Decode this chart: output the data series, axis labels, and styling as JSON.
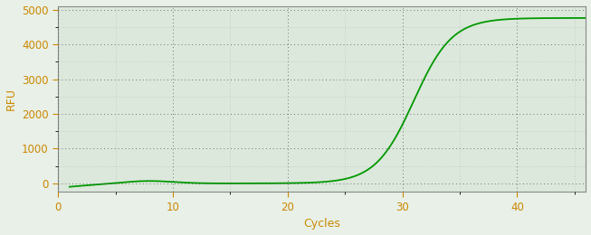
{
  "xlabel": "Cycles",
  "ylabel": "RFU",
  "line_color": "#009900",
  "line_width": 1.3,
  "background_color": "#e8f0e8",
  "plot_bg_color": "#dce8dc",
  "grid_color": "#555555",
  "tick_color": "#cc8800",
  "label_color": "#cc8800",
  "spine_color": "#888888",
  "xlim": [
    0,
    46
  ],
  "ylim": [
    -250,
    5100
  ],
  "xticks": [
    0,
    10,
    20,
    30,
    40
  ],
  "yticks": [
    0,
    1000,
    2000,
    3000,
    4000,
    5000
  ],
  "sigmoid_L": 4760,
  "sigmoid_k": 0.6,
  "sigmoid_x0": 31.0,
  "x_start": 1,
  "x_end": 46
}
